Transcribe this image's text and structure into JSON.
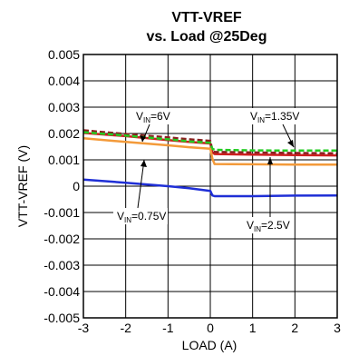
{
  "chart_data": {
    "type": "line",
    "title": [
      "VTT-VREF",
      "vs. Load @25Deg"
    ],
    "xlabel": "LOAD (A)",
    "ylabel": "VTT-VREF (V)",
    "xlim": [
      -3,
      3
    ],
    "ylim": [
      -0.005,
      0.005
    ],
    "x_ticks": [
      -3,
      -2,
      -1,
      0,
      1,
      2,
      3
    ],
    "x_tick_labels": [
      "-3",
      "-2",
      "-1",
      "0",
      "1",
      "2",
      "3"
    ],
    "y_ticks": [
      -0.005,
      -0.004,
      -0.003,
      -0.002,
      -0.001,
      0,
      0.001,
      0.002,
      0.003,
      0.004,
      0.005
    ],
    "y_tick_labels": [
      "-0.005",
      "-0.004",
      "-0.003",
      "-0.002",
      "-0.001",
      "0",
      "0.001",
      "0.002",
      "0.003",
      "0.004",
      "0.005"
    ],
    "grid": true,
    "series": [
      {
        "name": "VIN=0.75V",
        "color": "#1f2fd6",
        "dash": "solid",
        "x": [
          -3,
          -2,
          -1,
          -0.5,
          0,
          0.05,
          0.1,
          1,
          2,
          3
        ],
        "y": [
          0.00025,
          0.00013,
          0.0,
          -8e-05,
          -0.00018,
          -0.00035,
          -0.00038,
          -0.00038,
          -0.00036,
          -0.00035
        ]
      },
      {
        "name": "VIN=2.5V",
        "color": "#cc1f1f",
        "dash": "solid",
        "x": [
          -3,
          -2,
          -1,
          -0.5,
          0,
          0.05,
          0.1,
          1,
          2,
          3
        ],
        "y": [
          0.00202,
          0.0019,
          0.00175,
          0.00168,
          0.00162,
          0.00128,
          0.00122,
          0.0012,
          0.00118,
          0.00117
        ]
      },
      {
        "name": "VIN=6V",
        "color": "#8a1f1f",
        "dash": "dashed",
        "x": [
          -3,
          -2,
          -1,
          -0.5,
          0,
          0.05,
          0.1,
          1,
          2,
          3
        ],
        "y": [
          0.00212,
          0.00198,
          0.00185,
          0.00178,
          0.00172,
          0.00136,
          0.0013,
          0.00128,
          0.00126,
          0.00125
        ]
      },
      {
        "name": "VIN=1.35V",
        "color": "#22cc22",
        "dash": "dashed",
        "x": [
          -3,
          -2,
          -1,
          -0.5,
          0,
          0.05,
          0.1,
          1,
          2,
          3
        ],
        "y": [
          0.00205,
          0.00192,
          0.00178,
          0.0017,
          0.00165,
          0.00142,
          0.00138,
          0.00136,
          0.00135,
          0.00135
        ]
      },
      {
        "name": "VIN=1.35V (orange)",
        "color": "#f39a3a",
        "dash": "solid",
        "x": [
          -3,
          -2,
          -1,
          -0.5,
          0,
          0.05,
          0.1,
          1,
          2,
          3
        ],
        "y": [
          0.00182,
          0.00168,
          0.00155,
          0.00148,
          0.00142,
          0.00105,
          0.00084,
          0.00083,
          0.00082,
          0.00082
        ]
      }
    ],
    "annotations": [
      {
        "main": "V",
        "sub": "IN",
        "rest": "=6V"
      },
      {
        "main": "V",
        "sub": "IN",
        "rest": "=1.35V"
      },
      {
        "main": "V",
        "sub": "IN",
        "rest": "=0.75V"
      },
      {
        "main": "V",
        "sub": "IN",
        "rest": "=2.5V"
      }
    ]
  }
}
